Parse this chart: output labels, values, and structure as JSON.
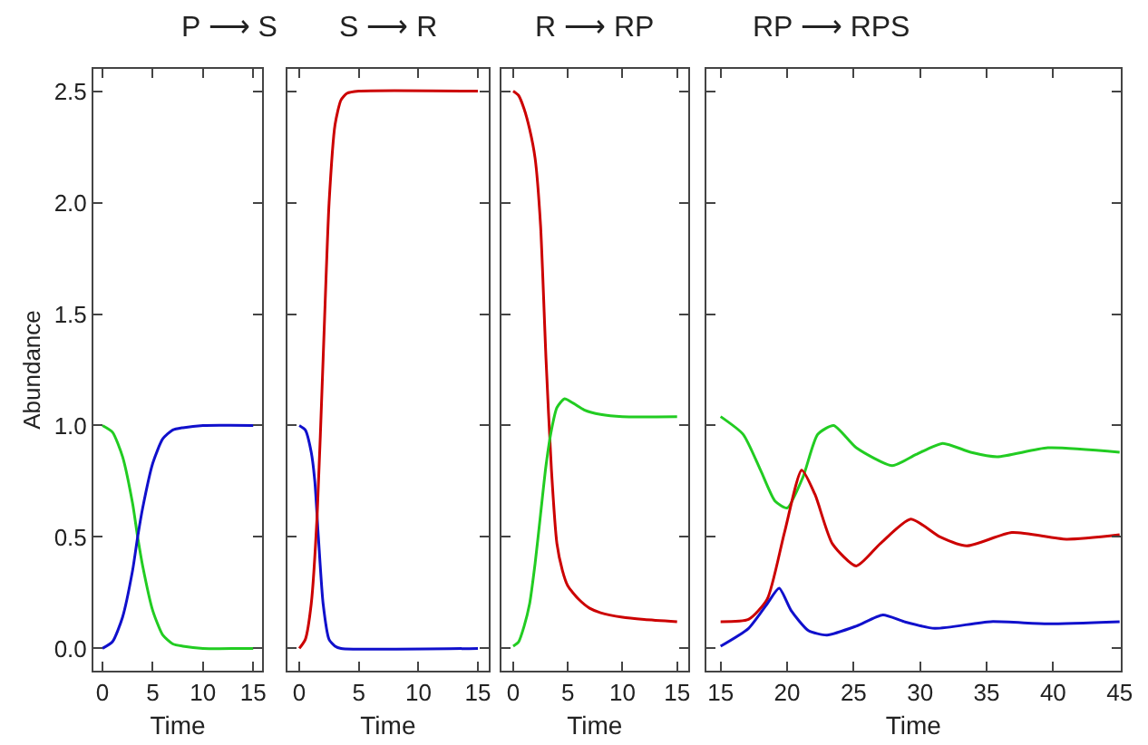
{
  "chart_data": [
    {
      "type": "line",
      "title": "P ⟶ S",
      "xlabel": "Time",
      "ylabel": "Abundance",
      "xlim": [
        -0.9,
        15.9
      ],
      "xticks": [
        0,
        5,
        10,
        15
      ],
      "ylim": [
        -0.1,
        2.6
      ],
      "yticks": [
        {
          "value": 0,
          "label": "0.0"
        },
        {
          "value": 0.5,
          "label": "0.5"
        },
        {
          "value": 1,
          "label": "1.0"
        },
        {
          "value": 1.5,
          "label": "1.5"
        },
        {
          "value": 2,
          "label": "2.0"
        },
        {
          "value": 2.5,
          "label": "2.5"
        }
      ],
      "series": [
        {
          "color": "#22cc22",
          "x": [
            0,
            1,
            2,
            3,
            3.5,
            4,
            5,
            6,
            7,
            8,
            10,
            15
          ],
          "values": [
            1.0,
            0.97,
            0.86,
            0.65,
            0.5,
            0.37,
            0.17,
            0.06,
            0.02,
            0.01,
            0,
            0
          ]
        },
        {
          "color": "#1010cc",
          "x": [
            0,
            1,
            2,
            3,
            3.5,
            4,
            5,
            6,
            7,
            8,
            10,
            15
          ],
          "values": [
            0.0,
            0.03,
            0.14,
            0.35,
            0.5,
            0.63,
            0.83,
            0.94,
            0.98,
            0.99,
            1.0,
            1.0
          ]
        }
      ]
    },
    {
      "type": "line",
      "title": "S ⟶ R",
      "xlabel": "Time",
      "xlim": [
        -1,
        15.9
      ],
      "xticks": [
        0,
        5,
        10,
        15
      ],
      "ylim": [
        -0.1,
        2.6
      ],
      "yticks": [
        {
          "value": 0,
          "label": null
        },
        {
          "value": 0.5,
          "label": null
        },
        {
          "value": 1,
          "label": null
        },
        {
          "value": 1.5,
          "label": null
        },
        {
          "value": 2,
          "label": null
        },
        {
          "value": 2.5,
          "label": null
        }
      ],
      "tick_labels": "x",
      "series": [
        {
          "color": "#1010cc",
          "x": [
            0,
            0.5,
            1,
            1.3,
            1.6,
            2,
            2.5,
            3,
            3.5,
            15
          ],
          "values": [
            1.0,
            0.98,
            0.88,
            0.75,
            0.5,
            0.2,
            0.04,
            0.01,
            0,
            0
          ]
        },
        {
          "color": "#cc0000",
          "x": [
            0,
            0.5,
            1,
            1.5,
            2,
            2.5,
            3,
            3.5,
            4,
            5,
            15
          ],
          "values": [
            0,
            0.04,
            0.2,
            0.6,
            1.3,
            2.0,
            2.35,
            2.46,
            2.49,
            2.5,
            2.5
          ]
        }
      ]
    },
    {
      "type": "line",
      "title": "R ⟶ RP",
      "xlabel": "Time",
      "xlim": [
        -1.1,
        16
      ],
      "xticks": [
        0,
        5,
        10,
        15
      ],
      "ylim": [
        -0.1,
        2.6
      ],
      "yticks": [
        {
          "value": 0,
          "label": null
        },
        {
          "value": 0.5,
          "label": null
        },
        {
          "value": 1,
          "label": null
        },
        {
          "value": 1.5,
          "label": null
        },
        {
          "value": 2,
          "label": null
        },
        {
          "value": 2.5,
          "label": null
        }
      ],
      "tick_labels": "x",
      "series": [
        {
          "color": "#cc0000",
          "x": [
            0,
            0.5,
            1,
            1.5,
            2,
            2.5,
            3,
            3.5,
            4,
            4.5,
            5,
            6,
            7,
            8,
            10,
            12,
            15
          ],
          "values": [
            2.5,
            2.48,
            2.42,
            2.33,
            2.2,
            1.9,
            1.3,
            0.8,
            0.47,
            0.35,
            0.28,
            0.22,
            0.18,
            0.16,
            0.14,
            0.13,
            0.12
          ]
        },
        {
          "color": "#22cc22",
          "x": [
            0,
            0.5,
            1,
            1.5,
            2,
            2.5,
            3,
            3.5,
            4,
            4.7,
            5.5,
            6.5,
            8,
            10,
            15
          ],
          "values": [
            0.01,
            0.03,
            0.1,
            0.2,
            0.38,
            0.6,
            0.82,
            0.98,
            1.08,
            1.12,
            1.1,
            1.07,
            1.05,
            1.04,
            1.04
          ]
        }
      ]
    },
    {
      "type": "line",
      "title": "RP ⟶ RPS",
      "xlabel": "Time",
      "xlim": [
        13.9,
        45.1
      ],
      "xticks": [
        15,
        20,
        25,
        30,
        35,
        40,
        45
      ],
      "ylim": [
        -0.1,
        2.6
      ],
      "yticks": [
        {
          "value": 0,
          "label": null
        },
        {
          "value": 0.5,
          "label": null
        },
        {
          "value": 1,
          "label": null
        },
        {
          "value": 1.5,
          "label": null
        },
        {
          "value": 2,
          "label": null
        },
        {
          "value": 2.5,
          "label": null
        }
      ],
      "tick_labels": "x",
      "series": [
        {
          "color": "#22cc22",
          "x": [
            15,
            16.7,
            18,
            19.1,
            20,
            21.2,
            22.3,
            23.5,
            25.2,
            27.9,
            29.7,
            31.7,
            33.8,
            35.8,
            39.6,
            45
          ],
          "values": [
            1.04,
            0.96,
            0.8,
            0.66,
            0.63,
            0.77,
            0.96,
            1.0,
            0.9,
            0.82,
            0.87,
            0.92,
            0.88,
            0.86,
            0.9,
            0.88
          ]
        },
        {
          "color": "#cc0000",
          "x": [
            15,
            17.1,
            18.5,
            19.8,
            21.1,
            22.1,
            23.4,
            25.2,
            27,
            29.3,
            31.5,
            33.5,
            36.9,
            41,
            45
          ],
          "values": [
            0.12,
            0.13,
            0.22,
            0.52,
            0.8,
            0.69,
            0.47,
            0.37,
            0.47,
            0.58,
            0.5,
            0.46,
            0.52,
            0.49,
            0.51
          ]
        },
        {
          "color": "#1010cc",
          "x": [
            15,
            17.1,
            18.5,
            19.4,
            20.3,
            21.6,
            23,
            25.2,
            27.2,
            28.8,
            31.1,
            35.3,
            39.6,
            45
          ],
          "values": [
            0.01,
            0.09,
            0.2,
            0.27,
            0.17,
            0.08,
            0.06,
            0.1,
            0.15,
            0.12,
            0.09,
            0.12,
            0.11,
            0.12
          ]
        }
      ]
    }
  ]
}
